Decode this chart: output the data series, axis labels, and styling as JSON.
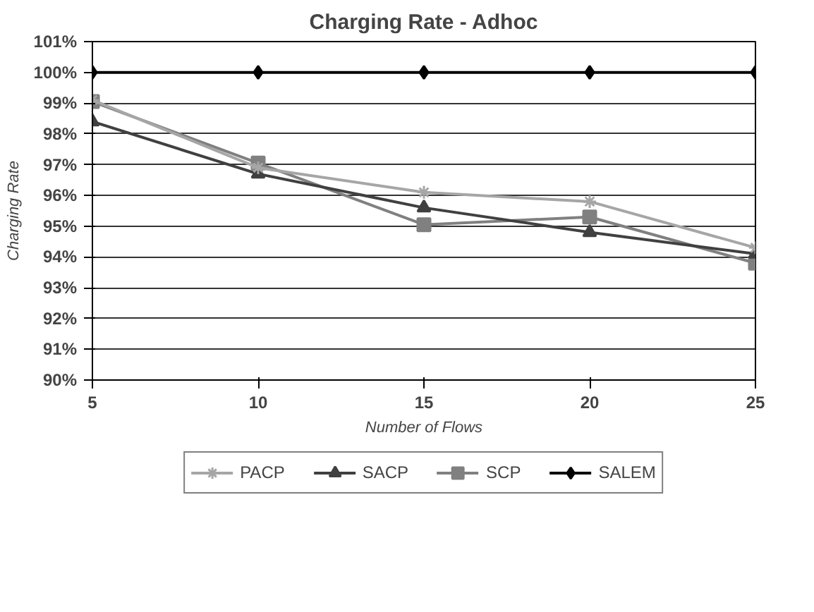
{
  "chart_data": {
    "type": "line",
    "title": "Charging Rate - Adhoc",
    "xlabel": "Number of Flows",
    "ylabel": "Charging Rate",
    "x": [
      5,
      10,
      15,
      20,
      25
    ],
    "series": [
      {
        "name": "PACP",
        "color": "#a6a6a6",
        "marker": "cross",
        "values": [
          99.1,
          96.9,
          96.1,
          95.8,
          94.3
        ]
      },
      {
        "name": "SACP",
        "color": "#404040",
        "marker": "triangle",
        "values": [
          98.4,
          96.7,
          95.6,
          94.8,
          94.1
        ]
      },
      {
        "name": "SCP",
        "color": "#808080",
        "marker": "square",
        "values": [
          99.05,
          97.05,
          95.05,
          95.3,
          93.8
        ]
      },
      {
        "name": "SALEM",
        "color": "#000000",
        "marker": "diamond",
        "values": [
          100,
          100,
          100,
          100,
          100
        ]
      }
    ],
    "xlim": [
      5,
      25
    ],
    "xticks": [
      5,
      10,
      15,
      20,
      25
    ],
    "ylim": [
      90,
      101
    ],
    "yticks": [
      {
        "value": 90,
        "label": "90%"
      },
      {
        "value": 91,
        "label": "91%"
      },
      {
        "value": 92,
        "label": "92%"
      },
      {
        "value": 93,
        "label": "93%"
      },
      {
        "value": 94,
        "label": "94%"
      },
      {
        "value": 95,
        "label": "95%"
      },
      {
        "value": 96,
        "label": "96%"
      },
      {
        "value": 97,
        "label": "97%"
      },
      {
        "value": 98,
        "label": "98%"
      },
      {
        "value": 99,
        "label": "99%"
      },
      {
        "value": 100,
        "label": "100%"
      },
      {
        "value": 101,
        "label": "101%"
      }
    ],
    "grid": "y",
    "legend": "bottom",
    "line_style": "solid"
  }
}
